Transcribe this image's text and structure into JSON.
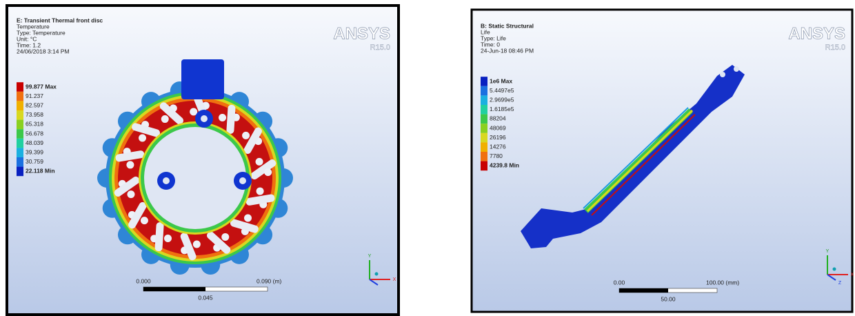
{
  "panels": [
    {
      "header": [
        "E: Transient Thermal front disc",
        "Temperature",
        "Type: Temperature",
        "Unit: °C",
        "Time: 1.2",
        "24/06/2018 3:14 PM"
      ],
      "legend": [
        "99.877 Max",
        "91.237",
        "82.597",
        "73.958",
        "65.318",
        "56.678",
        "48.039",
        "39.399",
        "30.759",
        "22.118 Min"
      ],
      "logo": "ANSYS",
      "version": "R15.0",
      "scale": {
        "start": "0.000",
        "end": "0.090 (m)",
        "middle": "0.045"
      },
      "triad": [
        "Y",
        "X"
      ]
    },
    {
      "header": [
        "B: Static Structural",
        "Life",
        "Type: Life",
        "Time: 0",
        "24-Jun-18 08:46 PM"
      ],
      "legend": [
        "1e6 Max",
        "5.4497e5",
        "2.9699e5",
        "1.6185e5",
        "88204",
        "48069",
        "26196",
        "14276",
        "7780",
        "4239.8 Min"
      ],
      "logo": "ANSYS",
      "version": "R15.0",
      "scale": {
        "start": "0.00",
        "end": "100.00 (mm)",
        "middle": "50.00"
      },
      "triad": [
        "Y",
        "X",
        "Z"
      ]
    }
  ]
}
